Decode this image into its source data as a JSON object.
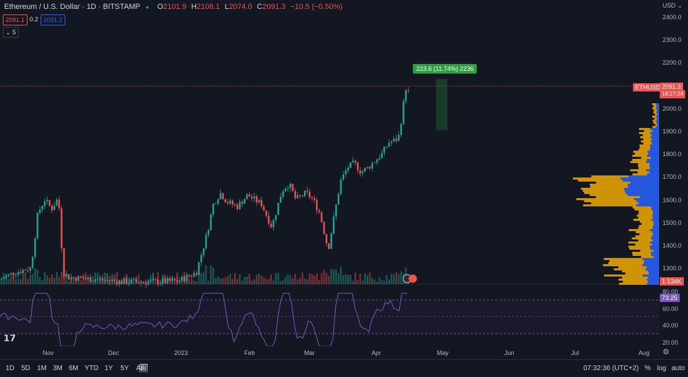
{
  "header": {
    "symbol_title": "Ethereum / U.S. Dollar · 1D · BITSTAMP",
    "open_label": "O",
    "open": "2101.9",
    "high_label": "H",
    "high": "2108.1",
    "low_label": "L",
    "low": "2074.0",
    "close_label": "C",
    "close": "2091.3",
    "change": "−10.5 (−0.50%)",
    "bid": "2091.1",
    "spread": "0.2",
    "ask": "2091.2",
    "indicators_count": "5"
  },
  "price_axis": {
    "currency": "USD",
    "ticks": [
      "2400.0",
      "2300.0",
      "2200.0",
      "2100.0",
      "2000.0",
      "1900.0",
      "1800.0",
      "1700.0",
      "1600.0",
      "1500.0",
      "1400.0",
      "1300.0"
    ],
    "last_price": "2091.3",
    "countdown": "18:27:24",
    "symbol_tag": "ETHUSD",
    "volume_tag": "1.134K"
  },
  "rsi_axis": {
    "ticks": [
      "80.00",
      "60.00",
      "40.00",
      "20.00"
    ],
    "value": "73.25"
  },
  "time_axis": {
    "ticks": [
      "Nov",
      "Dec",
      "2023",
      "Feb",
      "Mar",
      "Apr",
      "May",
      "Jun",
      "Jul",
      "Aug"
    ]
  },
  "measure": {
    "label": "223.6 (11.74%) 2236"
  },
  "bottom_bar": {
    "timeframes": [
      "1D",
      "5D",
      "1M",
      "3M",
      "6M",
      "YTD",
      "1Y",
      "5Y",
      "All"
    ],
    "clock": "07:32:36 (UTC+2)",
    "percent_label": "%",
    "log_label": "log",
    "auto_label": "auto"
  },
  "colors": {
    "up": "#26a69a",
    "down": "#ef5350",
    "rsi": "#7e57c2",
    "vp_up": "#2962ff",
    "vp_down": "#ffb300",
    "measure": "#2e9e42"
  }
}
